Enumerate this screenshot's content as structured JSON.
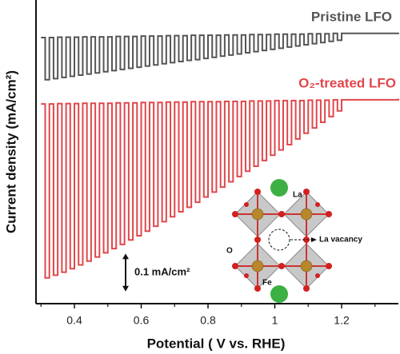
{
  "chart_data": {
    "type": "chopped-line",
    "xlabel": "Potential ( V vs. RHE)",
    "ylabel": "Current density (mA/cm²)",
    "x": [
      0.3,
      0.3125,
      0.325,
      0.3375,
      0.35,
      0.3625,
      0.375,
      0.3875,
      0.4,
      0.4125,
      0.425,
      0.4375,
      0.45,
      0.4625,
      0.475,
      0.4875,
      0.5,
      0.5125,
      0.525,
      0.5375,
      0.55,
      0.5625,
      0.575,
      0.5875,
      0.6,
      0.6125,
      0.625,
      0.6375,
      0.65,
      0.6625,
      0.675,
      0.6875,
      0.7,
      0.7125,
      0.725,
      0.7375,
      0.75,
      0.7625,
      0.775,
      0.7875,
      0.8,
      0.8125,
      0.825,
      0.8375,
      0.85,
      0.8625,
      0.875,
      0.8875,
      0.9,
      0.9125,
      0.925,
      0.9375,
      0.95,
      0.9625,
      0.975,
      0.9875,
      1.0,
      1.0125,
      1.025,
      1.0375,
      1.05,
      1.0625,
      1.075,
      1.0875,
      1.1,
      1.1125,
      1.125,
      1.1375,
      1.15,
      1.1625,
      1.175,
      1.1875,
      1.2,
      1.37
    ],
    "series": [
      {
        "name": "Pristine LFO",
        "color": "#555555",
        "values": [
          0.701,
          0.59,
          0.701,
          0.593,
          0.702,
          0.596,
          0.702,
          0.599,
          0.702,
          0.602,
          0.703,
          0.605,
          0.703,
          0.608,
          0.703,
          0.611,
          0.703,
          0.614,
          0.704,
          0.617,
          0.704,
          0.62,
          0.704,
          0.623,
          0.705,
          0.626,
          0.705,
          0.629,
          0.705,
          0.632,
          0.706,
          0.635,
          0.706,
          0.638,
          0.706,
          0.641,
          0.707,
          0.643,
          0.707,
          0.646,
          0.707,
          0.649,
          0.707,
          0.652,
          0.708,
          0.655,
          0.708,
          0.658,
          0.708,
          0.661,
          0.709,
          0.664,
          0.709,
          0.667,
          0.709,
          0.67,
          0.71,
          0.673,
          0.71,
          0.676,
          0.71,
          0.679,
          0.71,
          0.682,
          0.711,
          0.685,
          0.711,
          0.688,
          0.711,
          0.691,
          0.712,
          0.694,
          0.712,
          0.714
        ]
      },
      {
        "name": "O₂-treated LFO",
        "color": "#e0474c",
        "values": [
          0.526,
          0.068,
          0.526,
          0.075,
          0.527,
          0.083,
          0.527,
          0.092,
          0.527,
          0.102,
          0.528,
          0.112,
          0.528,
          0.123,
          0.528,
          0.134,
          0.528,
          0.145,
          0.529,
          0.156,
          0.529,
          0.168,
          0.529,
          0.179,
          0.53,
          0.191,
          0.53,
          0.204,
          0.53,
          0.216,
          0.531,
          0.229,
          0.531,
          0.242,
          0.531,
          0.254,
          0.532,
          0.267,
          0.532,
          0.281,
          0.532,
          0.294,
          0.532,
          0.307,
          0.533,
          0.321,
          0.533,
          0.335,
          0.533,
          0.349,
          0.534,
          0.362,
          0.534,
          0.377,
          0.534,
          0.391,
          0.535,
          0.405,
          0.535,
          0.419,
          0.535,
          0.434,
          0.535,
          0.449,
          0.536,
          0.463,
          0.536,
          0.478,
          0.536,
          0.493,
          0.537,
          0.508,
          0.537,
          0.54
        ]
      }
    ],
    "xlim": [
      0.285,
      1.37
    ],
    "xticks": [
      0.4,
      0.6,
      0.8,
      1.0,
      1.2
    ],
    "xminorticks": [
      0.3,
      0.5,
      0.7,
      0.9,
      1.1,
      1.3
    ],
    "ylim": [
      0,
      0.8
    ],
    "scale_bar": {
      "value": 0.1,
      "label": "0.1 mA/cm²"
    },
    "inset": {
      "la": "La",
      "o": "O",
      "fe": "Fe",
      "vacancy": "La vacancy"
    }
  }
}
